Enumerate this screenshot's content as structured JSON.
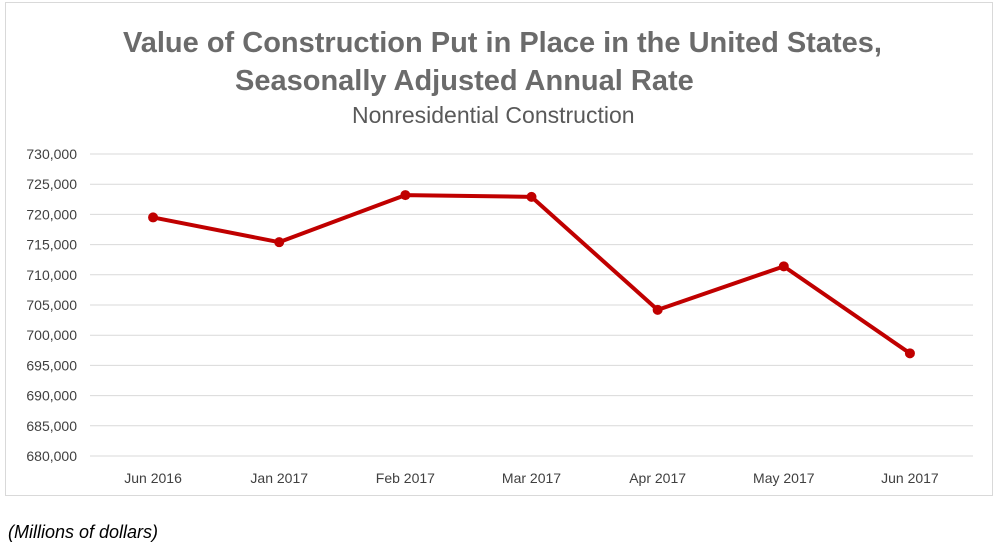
{
  "chart_data": {
    "type": "line",
    "title_line1": "Value of Construction Put in Place in the United States,",
    "title_line2": "Seasonally Adjusted Annual Rate",
    "subtitle": "Nonresidential Construction",
    "categories": [
      "Jun 2016",
      "Jan 2017",
      "Feb 2017",
      "Mar 2017",
      "Apr 2017",
      "May 2017",
      "Jun 2017"
    ],
    "series": [
      {
        "values": [
          719500,
          715400,
          723200,
          722900,
          704200,
          711400,
          697000
        ],
        "color": "#c00000"
      }
    ],
    "ylim": [
      680000,
      730000
    ],
    "ytick_step": 5000,
    "yticks": [
      "680,000",
      "685,000",
      "690,000",
      "695,000",
      "700,000",
      "705,000",
      "710,000",
      "715,000",
      "720,000",
      "725,000",
      "730,000"
    ],
    "grid": true,
    "legend": "none"
  },
  "note": "(Millions of dollars)"
}
